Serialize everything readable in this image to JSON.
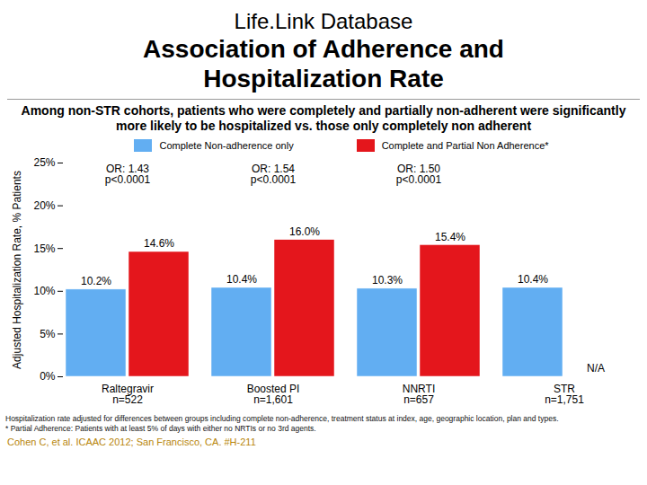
{
  "header": "Life.Link Database",
  "chart_data": {
    "type": "bar",
    "title": "Association of Adherence and Hospitalization Rate",
    "subtitle": "Among non-STR cohorts, patients who were completely and partially non-adherent were significantly more likely to be hospitalized vs. those only completely non adherent",
    "y_label": "Adjusted Hospitalization Rate, % Patients",
    "categories": [
      "Raltegravir\nn=522",
      "Boosted PI\nn=1,601",
      "NNRTI\nn=657",
      "STR\nn=1,751"
    ],
    "series": [
      {
        "name": "Complete Non-adherence only",
        "color": "#62aef2",
        "values": [
          10.2,
          10.4,
          10.3,
          10.4
        ],
        "value_labels": [
          "10.2%",
          "10.4%",
          "10.3%",
          "10.4%"
        ]
      },
      {
        "name": "Complete and Partial Non Adherence*",
        "color": "#e4161c",
        "values": [
          14.6,
          16.0,
          15.4,
          null
        ],
        "value_labels": [
          "14.6%",
          "16.0%",
          "15.4%",
          "N/A"
        ]
      }
    ],
    "annotations": [
      {
        "category": "Raltegravir\nn=522",
        "text": "OR: 1.43\np<0.0001"
      },
      {
        "category": "Boosted PI\nn=1,601",
        "text": "OR: 1.54\np<0.0001"
      },
      {
        "category": "NNRTI\nn=657",
        "text": "OR: 1.50\np<0.0001"
      }
    ],
    "ylim": [
      0,
      25
    ],
    "yticks": [
      {
        "value": 0,
        "label": "0%"
      },
      {
        "value": 5,
        "label": "5%"
      },
      {
        "value": 10,
        "label": "10%"
      },
      {
        "value": 15,
        "label": "15%"
      },
      {
        "value": 20,
        "label": "20%"
      },
      {
        "value": 25,
        "label": "25%"
      }
    ],
    "grid": false,
    "legend": "top",
    "data_labels": true
  },
  "footnotes": [
    "Hospitalization rate adjusted for differences between groups including complete non-adherence, treatment status at index, age, geographic location, plan and types.",
    "* Partial Adherence: Patients with at least 5% of days with either no NRTIs or no 3rd agents."
  ],
  "source": "Cohen C, et al. ICAAC 2012; San Francisco, CA. #H-211"
}
